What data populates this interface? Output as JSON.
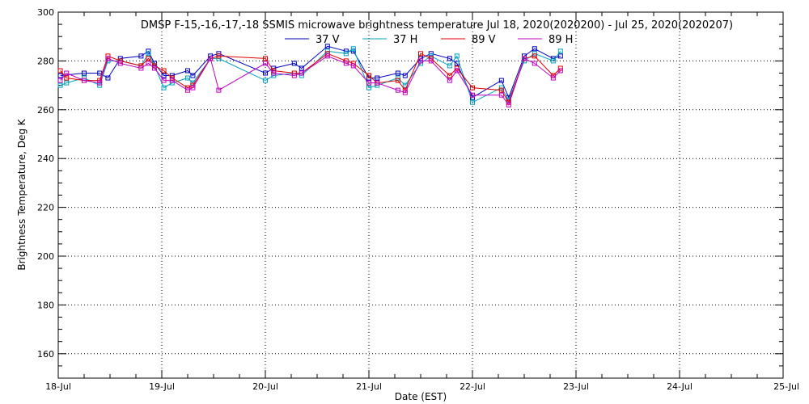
{
  "chart_data": {
    "type": "line",
    "title": "DMSP F-15,-16,-17,-18 SSMIS microwave brightness temperature Jul 18, 2020(2020200) - Jul 25, 2020(2020207)",
    "xlabel": "Date (EST)",
    "ylabel": "Brightness Temperature, Deg K",
    "xlim": [
      0,
      7
    ],
    "ylim": [
      150,
      300
    ],
    "x_tick_labels": [
      "18-Jul",
      "19-Jul",
      "20-Jul",
      "21-Jul",
      "22-Jul",
      "23-Jul",
      "24-Jul",
      "25-Jul"
    ],
    "y_ticks": [
      160,
      180,
      200,
      220,
      240,
      260,
      280,
      300
    ],
    "grid": true,
    "legend_position": "top-center",
    "series": [
      {
        "name": "37 V",
        "color": "#0000c0",
        "x": [
          0.02,
          0.25,
          0.4,
          0.48,
          0.6,
          0.8,
          0.87,
          0.93,
          1.02,
          1.1,
          1.25,
          1.3,
          1.47,
          1.55,
          2.0,
          2.08,
          2.28,
          2.35,
          2.6,
          2.78,
          2.85,
          3.0,
          3.08,
          3.28,
          3.35,
          3.5,
          3.6,
          3.78,
          3.85,
          4.0,
          4.28,
          4.35,
          4.5,
          4.6,
          4.78,
          4.85
        ],
        "y": [
          274,
          275,
          275,
          273,
          281,
          282,
          284,
          279,
          274,
          274,
          276,
          274,
          282,
          283,
          275,
          277,
          279,
          277,
          286,
          284,
          284,
          273,
          273,
          275,
          274,
          281,
          283,
          281,
          279,
          265,
          272,
          265,
          282,
          285,
          281,
          282
        ]
      },
      {
        "name": "37 H",
        "color": "#00a0c0",
        "x": [
          0.02,
          0.08,
          0.25,
          0.4,
          0.48,
          0.6,
          0.8,
          0.87,
          0.93,
          1.02,
          1.1,
          1.25,
          1.3,
          1.47,
          1.55,
          2.0,
          2.08,
          2.28,
          2.35,
          2.6,
          2.78,
          2.85,
          3.0,
          3.08,
          3.28,
          3.35,
          3.5,
          3.6,
          3.78,
          3.85,
          4.0,
          4.28,
          4.35,
          4.5,
          4.6,
          4.78,
          4.85
        ],
        "y": [
          270,
          271,
          273,
          270,
          280,
          280,
          278,
          283,
          278,
          269,
          271,
          273,
          271,
          281,
          281,
          272,
          274,
          275,
          274,
          284,
          283,
          285,
          269,
          270,
          273,
          270,
          279,
          282,
          278,
          282,
          263,
          269,
          264,
          280,
          283,
          280,
          284
        ]
      },
      {
        "name": "89 V",
        "color": "#e00000",
        "x": [
          0.02,
          0.08,
          0.25,
          0.4,
          0.48,
          0.6,
          0.8,
          0.87,
          0.93,
          1.02,
          1.1,
          1.25,
          1.3,
          1.47,
          1.55,
          2.0,
          2.08,
          2.28,
          2.35,
          2.6,
          2.78,
          2.85,
          3.0,
          3.08,
          3.28,
          3.35,
          3.5,
          3.6,
          3.78,
          3.85,
          4.0,
          4.28,
          4.35,
          4.5,
          4.6,
          4.78,
          4.85
        ],
        "y": [
          276,
          273,
          272,
          272,
          282,
          280,
          278,
          281,
          278,
          276,
          273,
          269,
          270,
          281,
          282,
          281,
          276,
          275,
          275,
          283,
          280,
          279,
          274,
          271,
          272,
          268,
          283,
          281,
          274,
          277,
          269,
          268,
          263,
          281,
          282,
          274,
          277
        ]
      },
      {
        "name": "89 H",
        "color": "#c000c0",
        "x": [
          0.02,
          0.08,
          0.25,
          0.4,
          0.48,
          0.6,
          0.8,
          0.87,
          0.93,
          1.02,
          1.1,
          1.25,
          1.3,
          1.47,
          1.55,
          2.0,
          2.08,
          2.28,
          2.35,
          2.6,
          2.78,
          2.85,
          3.0,
          3.08,
          3.28,
          3.35,
          3.5,
          3.6,
          3.78,
          3.85,
          4.0,
          4.28,
          4.35,
          4.5,
          4.6,
          4.78,
          4.85
        ],
        "y": [
          272,
          275,
          272,
          271,
          281,
          279,
          277,
          279,
          277,
          272,
          272,
          268,
          269,
          281,
          268,
          279,
          275,
          274,
          275,
          282,
          279,
          278,
          271,
          271,
          268,
          267,
          280,
          280,
          272,
          276,
          266,
          266,
          262,
          281,
          279,
          273,
          276
        ]
      }
    ]
  }
}
